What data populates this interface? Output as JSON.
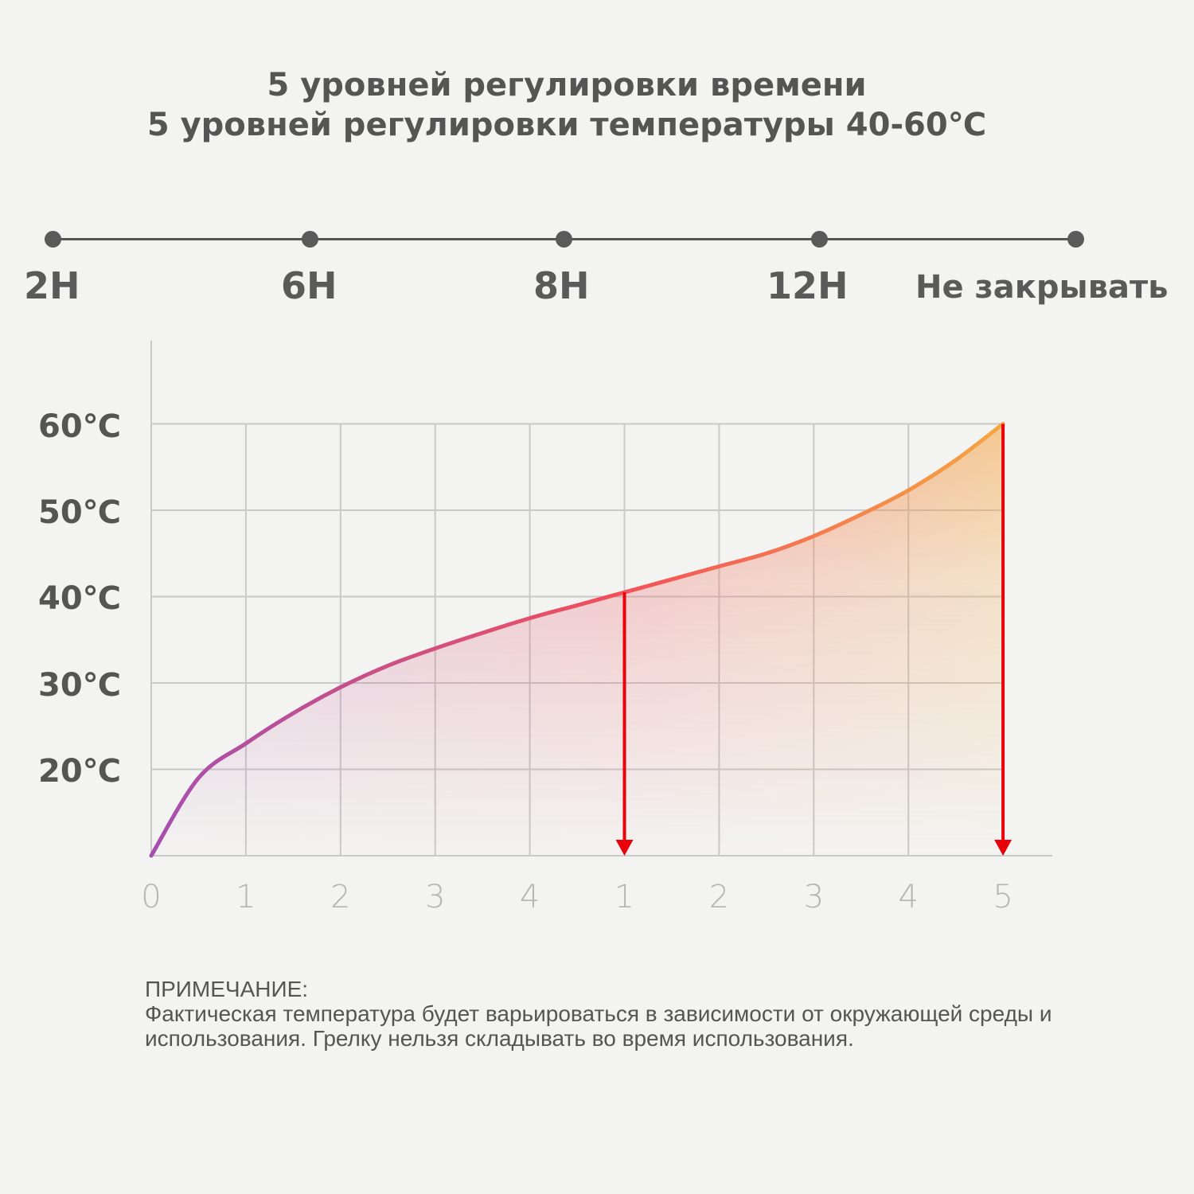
{
  "header": {
    "title_line1": "5 уровней регулировки времени",
    "title_line2": "5 уровней регулировки температуры 40-60℃"
  },
  "timeline": {
    "labels": [
      "2H",
      "6H",
      "8H",
      "12H",
      "Не закрывать"
    ]
  },
  "chart_data": {
    "type": "line",
    "x_tick_labels": [
      "0",
      "1",
      "2",
      "3",
      "4",
      "1",
      "2",
      "3",
      "4",
      "5"
    ],
    "y_tick_labels": [
      "20℃",
      "30℃",
      "40℃",
      "50℃",
      "60℃"
    ],
    "ylim": [
      10,
      60
    ],
    "grid": true,
    "series": [
      {
        "x": [
          0,
          0.5,
          1,
          1.5,
          2,
          2.5,
          3,
          3.5,
          4,
          4.5,
          5,
          5.5,
          6,
          6.5,
          7,
          7.5,
          8,
          8.5,
          9
        ],
        "values": [
          10,
          19,
          23,
          26.5,
          29.5,
          32,
          34,
          35.8,
          37.5,
          39,
          40.5,
          42,
          43.5,
          45,
          47,
          49.5,
          52.3,
          55.8,
          60
        ]
      }
    ],
    "arrows": [
      {
        "x": 5,
        "from_value": 40.5,
        "to_value": 10
      },
      {
        "x": 9,
        "from_value": 60,
        "to_value": 10
      }
    ],
    "colors": {
      "curve_start": "#a64fb0",
      "curve_mid": "#f2505a",
      "curve_end": "#f5a642",
      "arrow": "#e8000a",
      "grid": "#c9c9c9"
    }
  },
  "note": {
    "heading": "ПРИМЕЧАНИЕ:",
    "text": "Фактическая температура будет варьироваться в зависимости от окружающей среды и использования. Грелку нельзя складывать во время использования."
  }
}
